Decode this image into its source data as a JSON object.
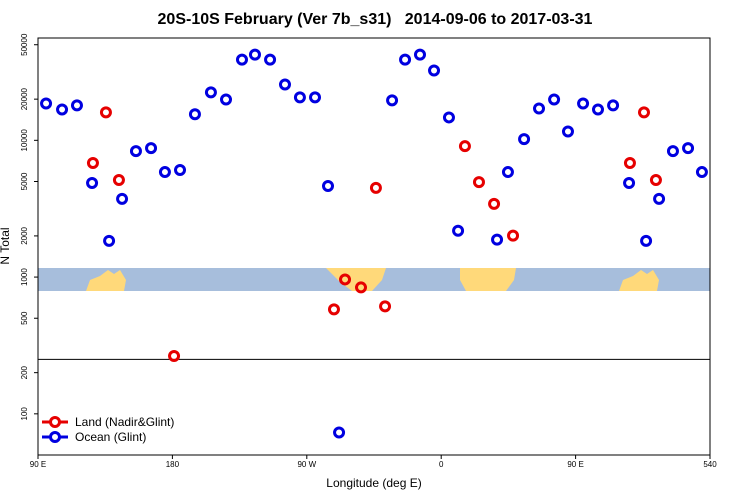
{
  "chart_data": {
    "type": "scatter",
    "title": "20S-10S February (Ver 7b_s31)   2014-09-06 to 2017-03-31",
    "x_label": "Longitude (deg E)",
    "y_label": "N Total",
    "xlim": [
      90,
      540
    ],
    "ylim": [
      50,
      56000
    ],
    "ylog": true,
    "xticks": [
      {
        "value": 90,
        "label": "90 E"
      },
      180,
      {
        "value": 270,
        "label": "90 W"
      },
      {
        "value": 360,
        "label": "0"
      },
      {
        "value": 450,
        "label": "90 E"
      },
      540
    ],
    "yticks": [
      100,
      200,
      500,
      1000,
      2000,
      5000,
      10000,
      20000,
      50000
    ],
    "hline": 250,
    "legend": "bottom-left",
    "series": [
      {
        "name": "Land (Nadir&Glint)",
        "color": "#e60000",
        "x": [
          135.5,
          126.8,
          144.2,
          181.1,
          288.2,
          295.6,
          306.3,
          316.3,
          322.4,
          375.9,
          385.3,
          395.4,
          408.1,
          486.4,
          495.8,
          503.8
        ],
        "values": [
          16000,
          6820,
          5130,
          265,
          581,
          961,
          840,
          4490,
          611,
          9060,
          4950,
          3430,
          2010,
          6820,
          16000,
          5130
        ]
      },
      {
        "name": "Ocean (Glint)",
        "color": "#0000e0",
        "x": [
          95.4,
          106.1,
          116.1,
          126.2,
          137.6,
          146.3,
          155.6,
          165.7,
          175.0,
          185.1,
          195.1,
          205.8,
          215.9,
          226.6,
          235.3,
          245.4,
          255.4,
          265.4,
          275.5,
          284.2,
          291.6,
          327.1,
          335.8,
          345.8,
          355.2,
          365.2,
          371.3,
          397.4,
          404.7,
          415.5,
          425.5,
          435.6,
          444.9,
          455.0,
          465.0,
          475.1,
          485.8,
          497.2,
          505.9,
          515.2,
          525.3,
          534.6
        ],
        "values": [
          18600,
          16800,
          18000,
          4870,
          1840,
          3730,
          8340,
          8770,
          5860,
          6070,
          15500,
          22400,
          19900,
          38900,
          42300,
          38900,
          25600,
          20600,
          20600,
          4630,
          73,
          19600,
          38900,
          42300,
          32400,
          14700,
          2180,
          1880,
          5860,
          10200,
          17100,
          19900,
          11600,
          18600,
          16800,
          18000,
          4870,
          1840,
          3730,
          8340,
          8770,
          5860
        ]
      }
    ]
  }
}
